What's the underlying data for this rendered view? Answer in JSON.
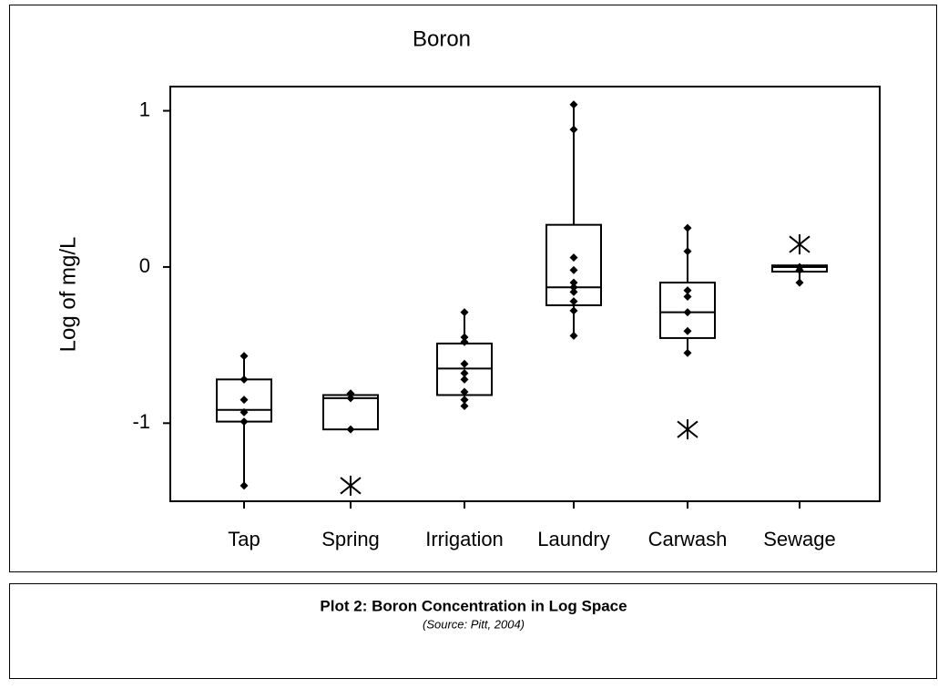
{
  "chart_data": {
    "type": "box",
    "title": "Boron",
    "y_label": "Log of mg/L",
    "categories": [
      "Tap",
      "Spring",
      "Irrigation",
      "Laundry",
      "Carwash",
      "Sewage"
    ],
    "boxes": [
      {
        "whisker_low": -1.4,
        "q1": -0.99,
        "median": -0.915,
        "q3": -0.72,
        "whisker_high": -0.57,
        "points": [
          -0.57,
          -0.72,
          -0.85,
          -0.93,
          -0.99,
          -1.4
        ],
        "outliers": []
      },
      {
        "whisker_low": -1.04,
        "q1": -1.04,
        "median": -0.84,
        "q3": -0.82,
        "whisker_high": -0.81,
        "points": [
          -0.81,
          -0.84,
          -1.04
        ],
        "outliers": [
          -1.4
        ]
      },
      {
        "whisker_low": -0.89,
        "q1": -0.82,
        "median": -0.65,
        "q3": -0.49,
        "whisker_high": -0.29,
        "points": [
          -0.29,
          -0.45,
          -0.48,
          -0.62,
          -0.68,
          -0.72,
          -0.8,
          -0.85,
          -0.89
        ],
        "outliers": []
      },
      {
        "whisker_low": -0.44,
        "q1": -0.245,
        "median": -0.13,
        "q3": 0.27,
        "whisker_high": 1.04,
        "points": [
          1.04,
          0.88,
          0.06,
          -0.02,
          -0.1,
          -0.13,
          -0.16,
          -0.22,
          -0.28,
          -0.44
        ],
        "outliers": []
      },
      {
        "whisker_low": -0.555,
        "q1": -0.455,
        "median": -0.29,
        "q3": -0.1,
        "whisker_high": 0.25,
        "points": [
          0.25,
          0.1,
          -0.15,
          -0.19,
          -0.29,
          -0.41,
          -0.55
        ],
        "outliers": [
          -1.04
        ]
      },
      {
        "whisker_low": -0.1,
        "q1": -0.03,
        "median": 0,
        "q3": 0.01,
        "whisker_high": 0.02,
        "points": [
          0,
          -0.02,
          -0.1
        ],
        "outliers": [
          0.145
        ]
      }
    ],
    "color": "#000000",
    "ylim": [
      -1.5,
      1.155
    ],
    "yticks": [
      -1,
      0,
      1
    ]
  },
  "caption": {
    "title": "Plot 2:  Boron Concentration in Log Space",
    "source": "(Source: Pitt, 2004)"
  }
}
